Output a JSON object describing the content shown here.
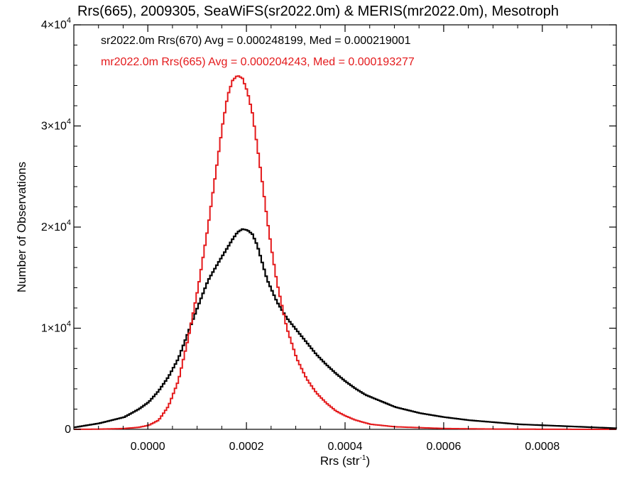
{
  "chart_data": {
    "type": "line",
    "title": "Rrs(665), 2009305, SeaWiFS(sr2022.0m) & MERIS(mr2022.0m), Mesotroph",
    "xlabel": "Rrs (str",
    "xlabel_sup": "-1",
    "xlabel_end": ")",
    "ylabel": "Number of Observations",
    "xlim": [
      -0.00015,
      0.00095
    ],
    "ylim": [
      0,
      40000
    ],
    "x_tick_values": [
      0.0,
      0.0002,
      0.0004,
      0.0006,
      0.0008
    ],
    "x_tick_labels": [
      "0.0000",
      "0.0002",
      "0.0004",
      "0.0006",
      "0.0008"
    ],
    "y_tick_values": [
      0,
      10000,
      20000,
      30000,
      40000
    ],
    "y_tick_labels": [
      {
        "mantissa": "0",
        "exp": ""
      },
      {
        "mantissa": "1×10",
        "exp": "4"
      },
      {
        "mantissa": "2×10",
        "exp": "4"
      },
      {
        "mantissa": "3×10",
        "exp": "4"
      },
      {
        "mantissa": "4×10",
        "exp": "4"
      }
    ],
    "colors": {
      "series_black": "#000000",
      "series_red": "#e41a1c"
    },
    "series": [
      {
        "name": "sr2022.0m Rrs(670)",
        "legend": "sr2022.0m Rrs(670) Avg = 0.000248199, Med = 0.000219001",
        "color": "#000000",
        "x": [
          -0.00015,
          -0.0001,
          -5e-05,
          -2e-05,
          0.0,
          2e-05,
          4e-05,
          6e-05,
          8e-05,
          0.0001,
          0.00012,
          0.00014,
          0.00016,
          0.00017,
          0.00018,
          0.00019,
          0.0002,
          0.00021,
          0.00022,
          0.00023,
          0.00024,
          0.00026,
          0.00028,
          0.0003,
          0.00032,
          0.00034,
          0.00036,
          0.00038,
          0.0004,
          0.00042,
          0.00044,
          0.00046,
          0.00048,
          0.0005,
          0.00055,
          0.0006,
          0.00065,
          0.0007,
          0.00075,
          0.0008,
          0.00085,
          0.0009,
          0.00095
        ],
        "y": [
          200,
          600,
          1200,
          2000,
          2700,
          3800,
          5200,
          7000,
          9600,
          12200,
          14700,
          16400,
          18000,
          18800,
          19500,
          19800,
          19700,
          19300,
          18200,
          16500,
          14800,
          12600,
          11000,
          9800,
          8600,
          7400,
          6400,
          5500,
          4700,
          4000,
          3400,
          3000,
          2600,
          2200,
          1600,
          1200,
          900,
          700,
          500,
          400,
          300,
          200,
          100
        ]
      },
      {
        "name": "mr2022.0m Rrs(665)",
        "legend": "mr2022.0m Rrs(665) Avg = 0.000204243, Med = 0.000193277",
        "color": "#e41a1c",
        "x": [
          -0.00015,
          -0.0001,
          -5e-05,
          -2e-05,
          0.0,
          2e-05,
          4e-05,
          6e-05,
          8e-05,
          0.0001,
          0.00012,
          0.00014,
          0.00015,
          0.00016,
          0.00017,
          0.00018,
          0.00019,
          0.0002,
          0.00021,
          0.00022,
          0.00023,
          0.00024,
          0.00025,
          0.00026,
          0.00028,
          0.0003,
          0.00032,
          0.00034,
          0.00036,
          0.00038,
          0.0004,
          0.00042,
          0.00045,
          0.0005,
          0.0006,
          0.0007,
          0.0008,
          0.0009,
          0.00095
        ],
        "y": [
          0,
          20,
          80,
          200,
          400,
          900,
          2300,
          4800,
          9000,
          14000,
          20000,
          26800,
          30200,
          33000,
          34500,
          35000,
          34700,
          33400,
          31300,
          28000,
          24500,
          20800,
          17500,
          14500,
          10000,
          7000,
          5000,
          3600,
          2600,
          1800,
          1300,
          900,
          500,
          250,
          80,
          30,
          10,
          0,
          0
        ]
      }
    ]
  }
}
